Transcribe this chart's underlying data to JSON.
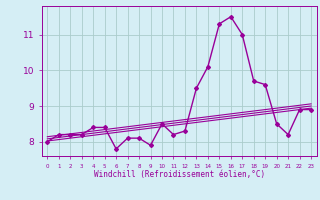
{
  "x": [
    0,
    1,
    2,
    3,
    4,
    5,
    6,
    7,
    8,
    9,
    10,
    11,
    12,
    13,
    14,
    15,
    16,
    17,
    18,
    19,
    20,
    21,
    22,
    23
  ],
  "y_main": [
    8.0,
    8.2,
    8.2,
    8.2,
    8.4,
    8.4,
    7.8,
    8.1,
    8.1,
    7.9,
    8.5,
    8.2,
    8.3,
    9.5,
    10.1,
    11.3,
    11.5,
    11.0,
    9.7,
    9.6,
    8.5,
    8.2,
    8.9,
    8.9
  ],
  "trend1": [
    8.02,
    8.06,
    8.1,
    8.14,
    8.18,
    8.22,
    8.26,
    8.3,
    8.34,
    8.38,
    8.42,
    8.46,
    8.5,
    8.54,
    8.58,
    8.62,
    8.66,
    8.7,
    8.74,
    8.78,
    8.82,
    8.86,
    8.9,
    8.94
  ],
  "trend2": [
    8.08,
    8.12,
    8.16,
    8.2,
    8.24,
    8.28,
    8.32,
    8.36,
    8.4,
    8.44,
    8.48,
    8.52,
    8.56,
    8.6,
    8.64,
    8.68,
    8.72,
    8.76,
    8.8,
    8.84,
    8.88,
    8.92,
    8.96,
    9.0
  ],
  "trend3": [
    8.14,
    8.18,
    8.22,
    8.26,
    8.3,
    8.34,
    8.38,
    8.42,
    8.46,
    8.5,
    8.54,
    8.58,
    8.62,
    8.66,
    8.7,
    8.74,
    8.78,
    8.82,
    8.86,
    8.9,
    8.94,
    8.98,
    9.02,
    9.06
  ],
  "xlim": [
    -0.5,
    23.5
  ],
  "ylim": [
    7.6,
    11.8
  ],
  "yticks": [
    8,
    9,
    10,
    11
  ],
  "xtick_labels": [
    "0",
    "1",
    "2",
    "3",
    "4",
    "5",
    "6",
    "7",
    "8",
    "9",
    "10",
    "11",
    "12",
    "13",
    "14",
    "15",
    "16",
    "17",
    "18",
    "19",
    "20",
    "21",
    "22",
    "23"
  ],
  "xlabel": "Windchill (Refroidissement éolien,°C)",
  "line_color": "#990099",
  "bg_color": "#d5eef5",
  "grid_color": "#aacccc",
  "marker": "D",
  "markersize": 2,
  "linewidth": 1.0
}
